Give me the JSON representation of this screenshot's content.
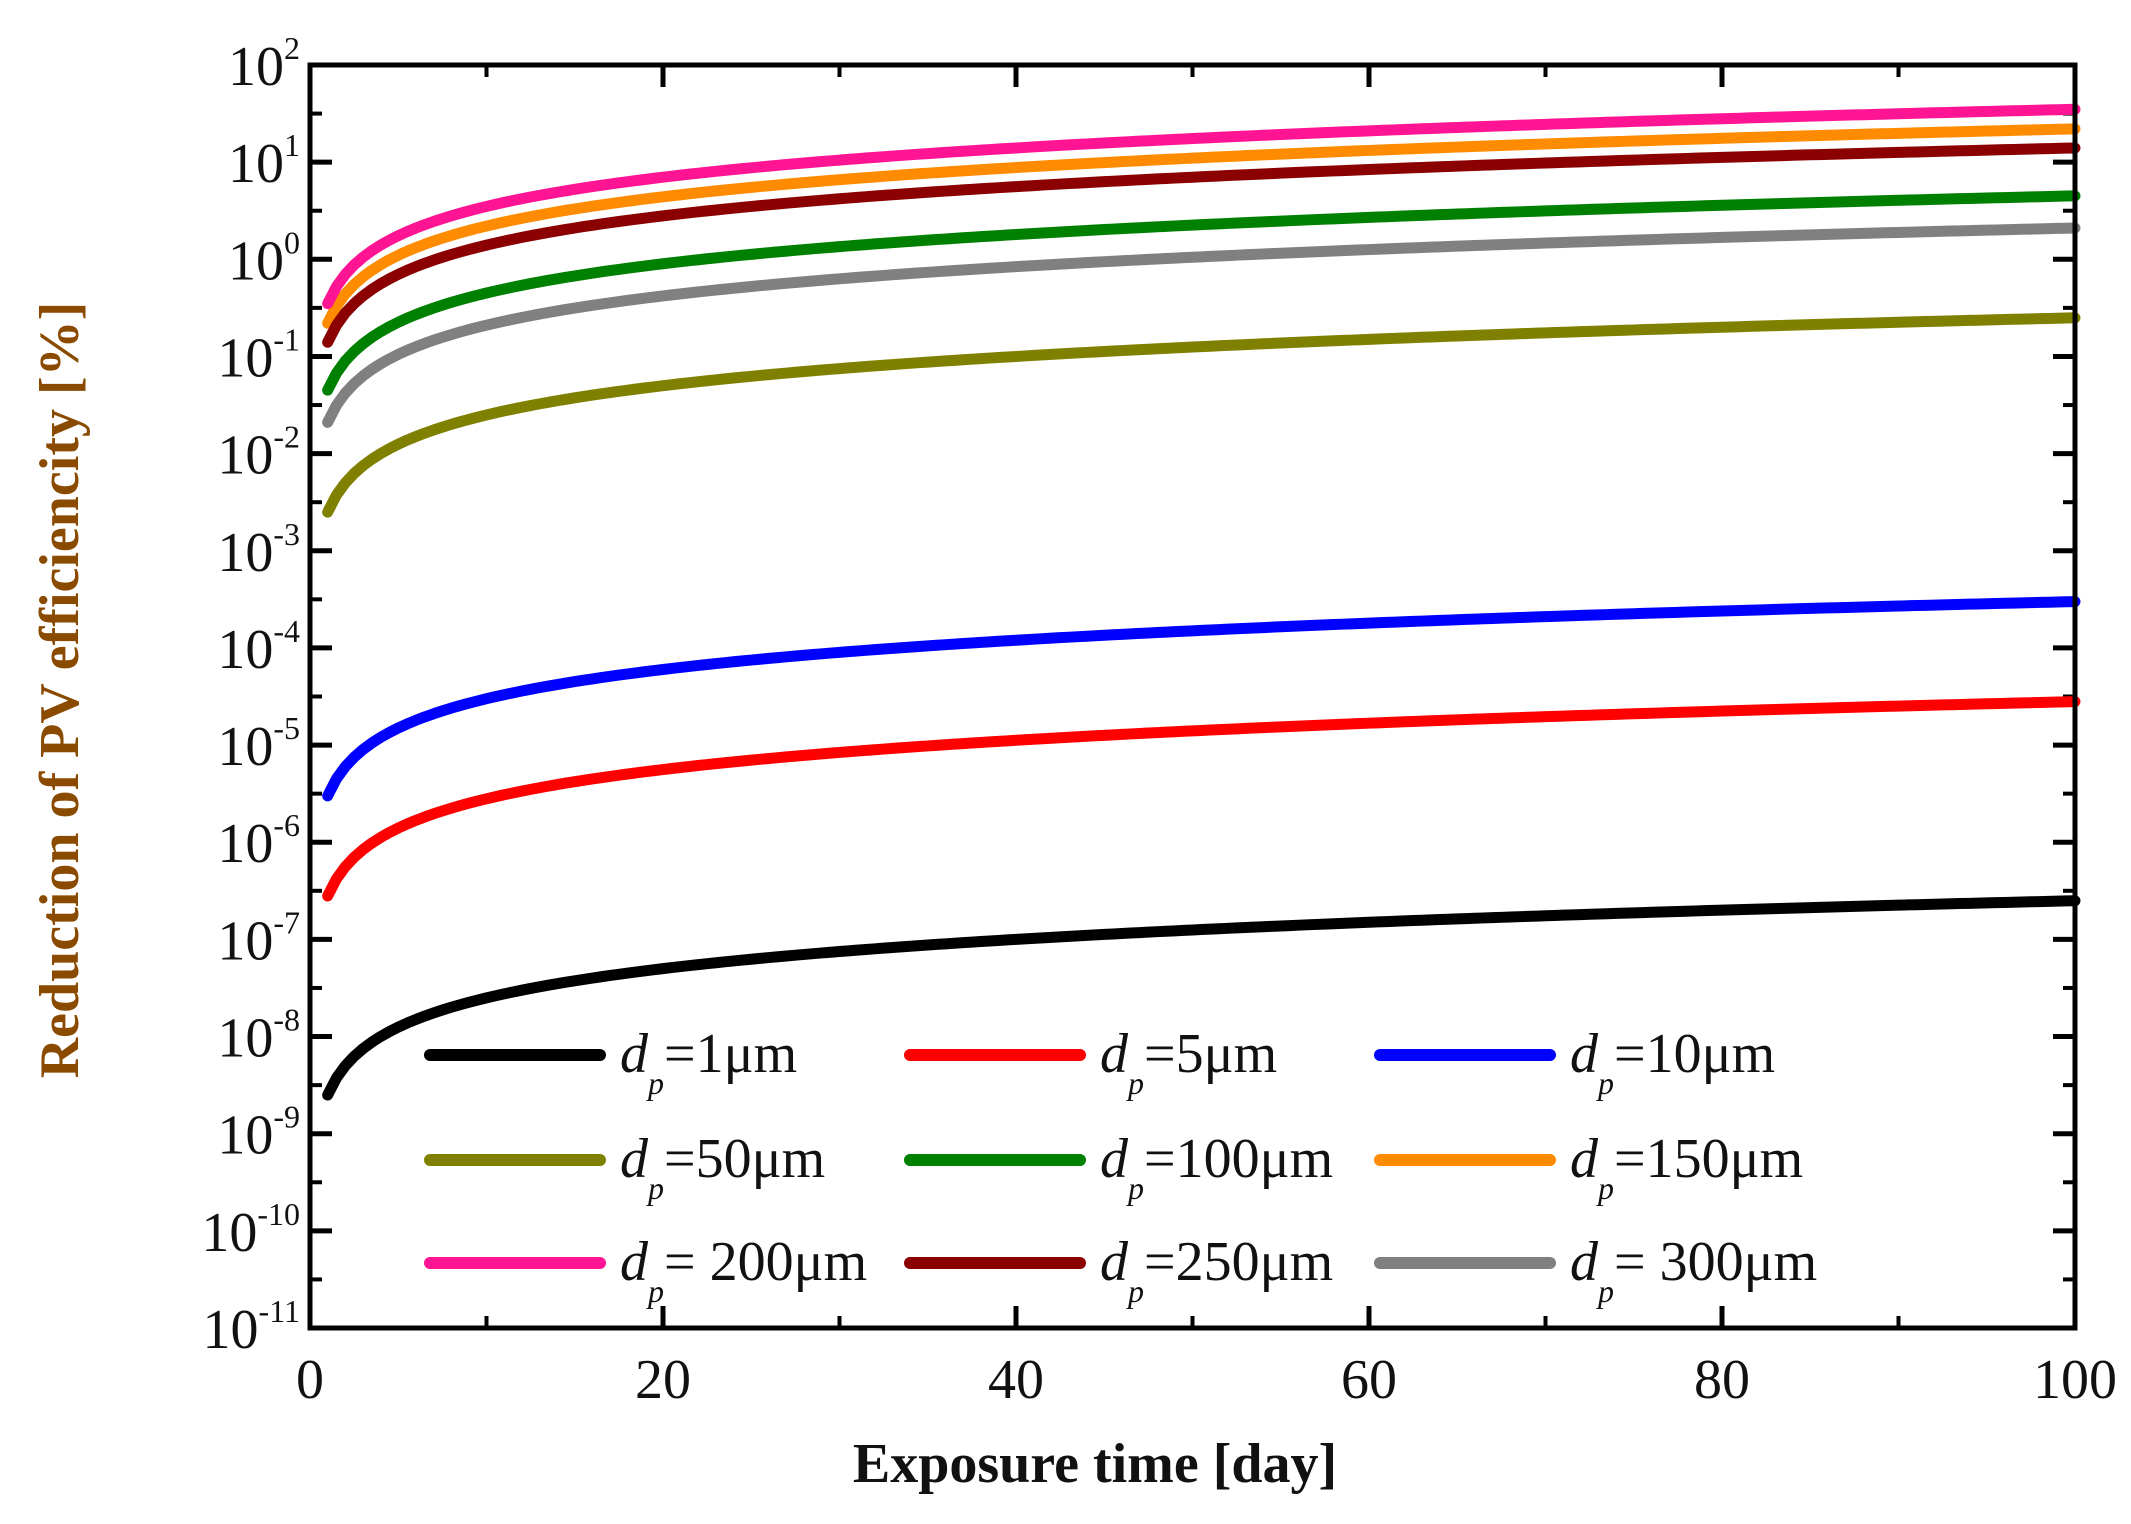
{
  "chart_data": {
    "type": "line",
    "xlabel": "Exposure time [day]",
    "ylabel": "Reduction of PV efficiencity  [%]",
    "xlabel_color": "#111111",
    "ylabel_color": "#8a4a00",
    "xlim": [
      0,
      100
    ],
    "ylim_log10": [
      -11,
      2
    ],
    "yscale": "log",
    "x_ticks": [
      0,
      20,
      40,
      60,
      80,
      100
    ],
    "y_ticks": [
      {
        "base": "10",
        "exp": "2"
      },
      {
        "base": "10",
        "exp": "1"
      },
      {
        "base": "10",
        "exp": "0"
      },
      {
        "base": "10",
        "exp": "-1"
      },
      {
        "base": "10",
        "exp": "-2"
      },
      {
        "base": "10",
        "exp": "-3"
      },
      {
        "base": "10",
        "exp": "-4"
      },
      {
        "base": "10",
        "exp": "-5"
      },
      {
        "base": "10",
        "exp": "-6"
      },
      {
        "base": "10",
        "exp": "-7"
      },
      {
        "base": "10",
        "exp": "-8"
      },
      {
        "base": "10",
        "exp": "-9"
      },
      {
        "base": "10",
        "exp": "-10"
      },
      {
        "base": "10",
        "exp": "-11"
      }
    ],
    "grid": false,
    "legend_position": "bottom, inside plot, 3 columns",
    "x": [
      1,
      100
    ],
    "series": [
      {
        "name_main": "d",
        "name_sub": "p",
        "name_rest": "=1μm",
        "color": "#000000",
        "values": [
          2.5e-09,
          2.5e-07
        ]
      },
      {
        "name_main": "d",
        "name_sub": "p",
        "name_rest": "=5μm",
        "color": "#ff0000",
        "values": [
          2.8e-07,
          2.8e-05
        ]
      },
      {
        "name_main": "d",
        "name_sub": "p",
        "name_rest": "=10μm",
        "color": "#0000ff",
        "values": [
          3e-06,
          0.0003
        ]
      },
      {
        "name_main": "d",
        "name_sub": "p",
        "name_rest": "=50μm",
        "color": "#808000",
        "values": [
          0.0025,
          0.25
        ]
      },
      {
        "name_main": "d",
        "name_sub": "p",
        "name_rest": "=100μm",
        "color": "#008000",
        "values": [
          0.045,
          4.5
        ]
      },
      {
        "name_main": "d",
        "name_sub": "p",
        "name_rest": "=150μm",
        "color": "#ff8c00",
        "values": [
          0.22,
          22
        ]
      },
      {
        "name_main": "d",
        "name_sub": "p",
        "name_rest": "= 200μm",
        "color": "#ff1493",
        "values": [
          0.35,
          35
        ]
      },
      {
        "name_main": "d",
        "name_sub": "p",
        "name_rest": "=250μm",
        "color": "#8b0000",
        "values": [
          0.14,
          14
        ]
      },
      {
        "name_main": "d",
        "name_sub": "p",
        "name_rest": "= 300μm",
        "color": "#808080",
        "values": [
          0.021,
          2.1
        ]
      }
    ]
  }
}
